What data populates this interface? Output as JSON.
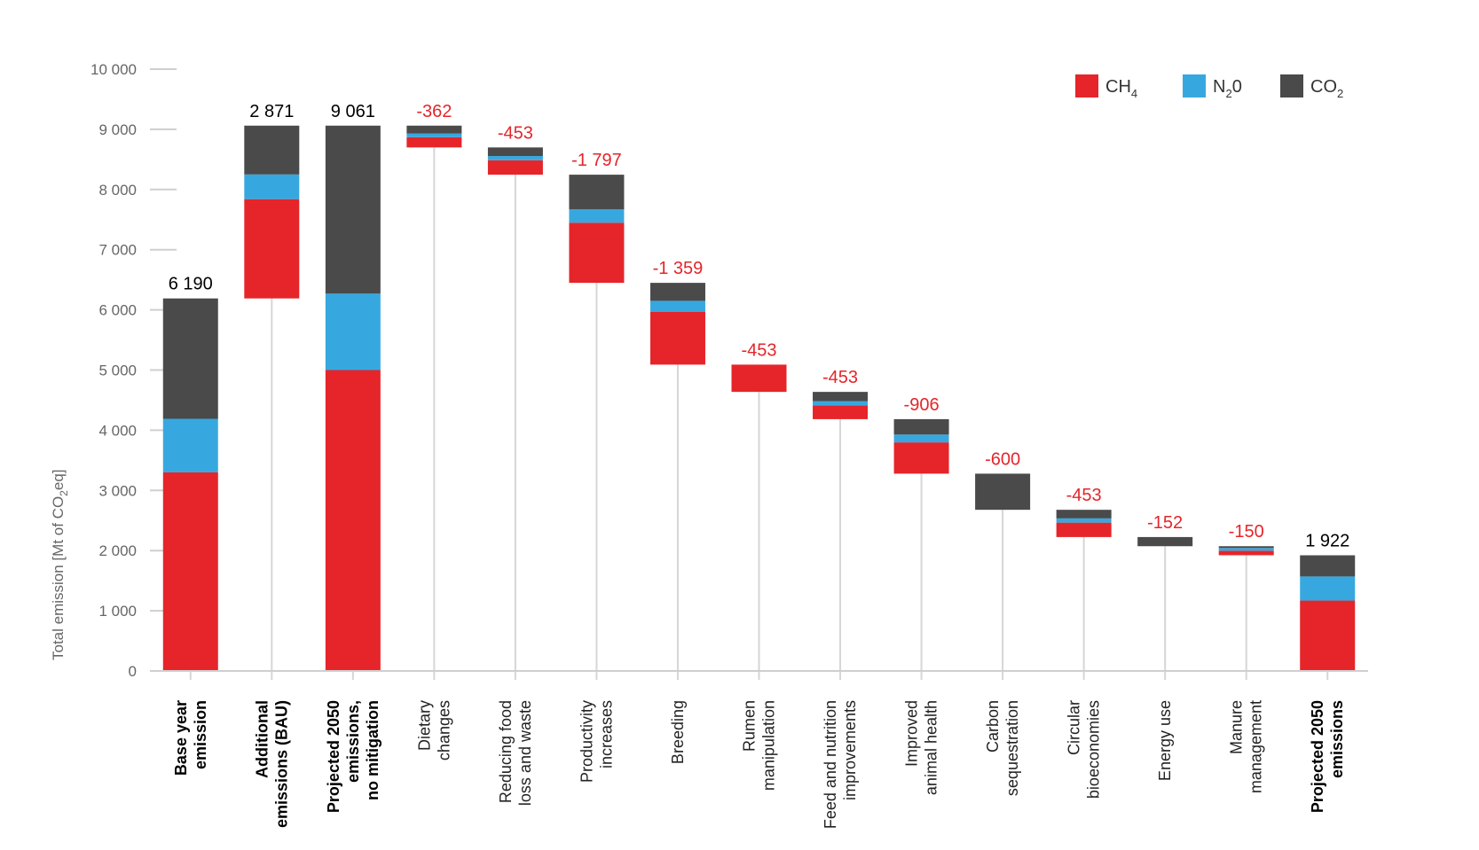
{
  "chart_data": {
    "type": "bar",
    "title": "",
    "ylabel": "Total emission [Mt of CO2eq]",
    "ylabel_parts": [
      "Total emission [Mt of CO",
      "2",
      "eq]"
    ],
    "yticks": [
      "0",
      "1 000",
      "2 000",
      "3 000",
      "4 000",
      "5 000",
      "6 000",
      "7 000",
      "8 000",
      "9 000",
      "10 000"
    ],
    "ylim": [
      0,
      10000
    ],
    "colors": {
      "CH4": "#e5252a",
      "N2O": "#37a8df",
      "CO2": "#4a4a4b",
      "increase": "#000000",
      "reduction": "#e5252a"
    },
    "legend": [
      {
        "key": "CH4",
        "main": "CH",
        "sub": "4"
      },
      {
        "key": "N2O",
        "main": "N",
        "sub": "2",
        "tail": "0"
      },
      {
        "key": "CO2",
        "main": "CO",
        "sub": "2"
      }
    ],
    "categories": [
      {
        "lines": [
          "Base year",
          "emission"
        ],
        "bold": true,
        "type": "total",
        "label": "6 190",
        "base": 0,
        "segments": [
          {
            "k": "CH4",
            "v": 3300
          },
          {
            "k": "N2O",
            "v": 890
          },
          {
            "k": "CO2",
            "v": 2000
          }
        ]
      },
      {
        "lines": [
          "Additional",
          "emissions (BAU)"
        ],
        "bold": true,
        "type": "increase",
        "label": "2 871",
        "base": 6190,
        "segments": [
          {
            "k": "CH4",
            "v": 1650
          },
          {
            "k": "N2O",
            "v": 410
          },
          {
            "k": "CO2",
            "v": 811
          }
        ]
      },
      {
        "lines": [
          "Projected 2050",
          "emissions,",
          "no mitigation"
        ],
        "bold": true,
        "type": "total",
        "label": "9 061",
        "base": 0,
        "segments": [
          {
            "k": "CH4",
            "v": 5000
          },
          {
            "k": "N2O",
            "v": 1270
          },
          {
            "k": "CO2",
            "v": 2791
          }
        ]
      },
      {
        "lines": [
          "Dietary",
          "changes"
        ],
        "bold": false,
        "type": "reduction",
        "label": "-362",
        "base": 8699,
        "segments": [
          {
            "k": "CH4",
            "v": 170
          },
          {
            "k": "N2O",
            "v": 60
          },
          {
            "k": "CO2",
            "v": 132
          }
        ]
      },
      {
        "lines": [
          "Reducing food",
          "loss and waste"
        ],
        "bold": false,
        "type": "reduction",
        "label": "-453",
        "base": 8246,
        "segments": [
          {
            "k": "CH4",
            "v": 240
          },
          {
            "k": "N2O",
            "v": 70
          },
          {
            "k": "CO2",
            "v": 143
          }
        ]
      },
      {
        "lines": [
          "Productivity",
          "increases"
        ],
        "bold": false,
        "type": "reduction",
        "label": "-1 797",
        "base": 6449,
        "segments": [
          {
            "k": "CH4",
            "v": 1000
          },
          {
            "k": "N2O",
            "v": 220
          },
          {
            "k": "CO2",
            "v": 577
          }
        ]
      },
      {
        "lines": [
          "Breeding"
        ],
        "bold": false,
        "type": "reduction",
        "label": "-1 359",
        "base": 5090,
        "segments": [
          {
            "k": "CH4",
            "v": 880
          },
          {
            "k": "N2O",
            "v": 180
          },
          {
            "k": "CO2",
            "v": 299
          }
        ]
      },
      {
        "lines": [
          "Rumen",
          "manipulation"
        ],
        "bold": false,
        "type": "reduction",
        "label": "-453",
        "base": 4637,
        "segments": [
          {
            "k": "CH4",
            "v": 453
          }
        ]
      },
      {
        "lines": [
          "Feed and nutrition",
          "improvements"
        ],
        "bold": false,
        "type": "reduction",
        "label": "-453",
        "base": 4184,
        "segments": [
          {
            "k": "CH4",
            "v": 230
          },
          {
            "k": "N2O",
            "v": 70
          },
          {
            "k": "CO2",
            "v": 153
          }
        ]
      },
      {
        "lines": [
          "Improved",
          "animal health"
        ],
        "bold": false,
        "type": "reduction",
        "label": "-906",
        "base": 3278,
        "segments": [
          {
            "k": "CH4",
            "v": 520
          },
          {
            "k": "N2O",
            "v": 130
          },
          {
            "k": "CO2",
            "v": 256
          }
        ]
      },
      {
        "lines": [
          "Carbon",
          "sequestration"
        ],
        "bold": false,
        "type": "reduction",
        "label": "-600",
        "base": 2678,
        "segments": [
          {
            "k": "CO2",
            "v": 600
          }
        ]
      },
      {
        "lines": [
          "Circular",
          "bioeconomies"
        ],
        "bold": false,
        "type": "reduction",
        "label": "-453",
        "base": 2225,
        "segments": [
          {
            "k": "CH4",
            "v": 240
          },
          {
            "k": "N2O",
            "v": 70
          },
          {
            "k": "CO2",
            "v": 143
          }
        ]
      },
      {
        "lines": [
          "Energy use"
        ],
        "bold": false,
        "type": "reduction",
        "label": "-152",
        "base": 2073,
        "segments": [
          {
            "k": "CO2",
            "v": 152
          }
        ]
      },
      {
        "lines": [
          "Manure",
          "management"
        ],
        "bold": false,
        "type": "reduction",
        "label": "-150",
        "base": 1923,
        "segments": [
          {
            "k": "CH4",
            "v": 75
          },
          {
            "k": "N2O",
            "v": 45
          },
          {
            "k": "CO2",
            "v": 30
          }
        ]
      },
      {
        "lines": [
          "Projected 2050",
          "emissions"
        ],
        "bold": true,
        "type": "total",
        "label": "1 922",
        "base": 0,
        "segments": [
          {
            "k": "CH4",
            "v": 1170
          },
          {
            "k": "N2O",
            "v": 400
          },
          {
            "k": "CO2",
            "v": 352
          }
        ]
      }
    ]
  }
}
